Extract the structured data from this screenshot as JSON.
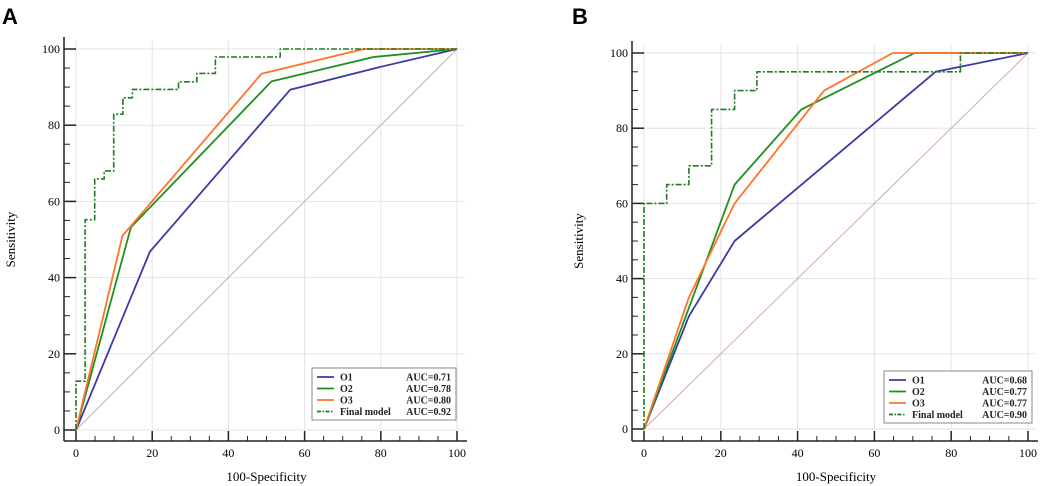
{
  "chart_data": [
    {
      "type": "line",
      "panel_label": "A",
      "xlabel": "100-Specificity",
      "ylabel": "Sensitivity",
      "xlim": [
        0,
        100
      ],
      "ylim": [
        0,
        100
      ],
      "xticks": [
        "0",
        "20",
        "40",
        "60",
        "80",
        "100"
      ],
      "yticks": [
        "0",
        "20",
        "40",
        "60",
        "80",
        "100"
      ],
      "grid": true,
      "legend_position": "bottom-right",
      "reference_line": {
        "x": [
          0,
          100
        ],
        "y": [
          0,
          100
        ],
        "color": "#d9a8a8"
      },
      "series": [
        {
          "name": "O1",
          "auc_label": "AUC=0.71",
          "color": "#3a3aa6",
          "style": "solid",
          "x": [
            0,
            19.4,
            56.2,
            79.9,
            100
          ],
          "y": [
            0,
            46.8,
            89.3,
            95.3,
            100
          ]
        },
        {
          "name": "O2",
          "auc_label": "AUC=0.78",
          "color": "#1f8f1f",
          "style": "solid",
          "x": [
            0,
            14.4,
            51.3,
            78.1,
            100
          ],
          "y": [
            0,
            53.2,
            91.5,
            97.9,
            100
          ]
        },
        {
          "name": "O3",
          "auc_label": "AUC=0.80",
          "color": "#ff7427",
          "style": "solid",
          "x": [
            0,
            12.2,
            48.7,
            75.5,
            100
          ],
          "y": [
            0,
            51,
            93.5,
            100,
            100
          ]
        },
        {
          "name": "Final model",
          "auc_label": "AUC=0.92",
          "color": "#217a21",
          "style": "dashdot",
          "x": [
            0,
            0,
            2.4,
            2.4,
            4.9,
            4.9,
            7.4,
            7.4,
            9.9,
            9.9,
            12.3,
            12.3,
            14.8,
            14.8,
            26.9,
            26.9,
            31.7,
            31.7,
            36.6,
            36.6,
            53.6,
            53.6,
            100
          ],
          "y": [
            0,
            12.8,
            12.8,
            55.2,
            55.2,
            65.9,
            65.9,
            68,
            68,
            82.9,
            82.9,
            87.2,
            87.2,
            89.4,
            89.4,
            91.4,
            91.4,
            93.6,
            93.6,
            97.9,
            97.9,
            100,
            100
          ]
        }
      ]
    },
    {
      "type": "line",
      "panel_label": "B",
      "xlabel": "100-Specificity",
      "ylabel": "Sensitivity",
      "xlim": [
        0,
        100
      ],
      "ylim": [
        0,
        100
      ],
      "xticks": [
        "0",
        "20",
        "40",
        "60",
        "80",
        "100"
      ],
      "yticks": [
        "0",
        "20",
        "40",
        "60",
        "80",
        "100"
      ],
      "grid": true,
      "legend_position": "bottom-right",
      "reference_line": {
        "x": [
          0,
          100
        ],
        "y": [
          0,
          100
        ],
        "color": "#d9a8a8"
      },
      "series": [
        {
          "name": "O1",
          "auc_label": "AUC=0.68",
          "color": "#3a3aa6",
          "style": "solid",
          "x": [
            0,
            11.7,
            23.6,
            75.9,
            100
          ],
          "y": [
            0,
            30,
            50,
            95,
            100
          ]
        },
        {
          "name": "O2",
          "auc_label": "AUC=0.77",
          "color": "#1f8f1f",
          "style": "solid",
          "x": [
            0,
            23.6,
            41,
            70.5,
            100
          ],
          "y": [
            0,
            65,
            85,
            100,
            100
          ]
        },
        {
          "name": "O3",
          "auc_label": "AUC=0.77",
          "color": "#ff7427",
          "style": "solid",
          "x": [
            0,
            11.7,
            23.6,
            46.9,
            64.8,
            100
          ],
          "y": [
            0,
            35,
            60,
            90,
            100,
            100
          ]
        },
        {
          "name": "Final model",
          "auc_label": "AUC=0.90",
          "color": "#217a21",
          "style": "dashdot",
          "x": [
            0,
            0,
            5.9,
            5.9,
            11.7,
            11.7,
            17.6,
            17.6,
            23.6,
            23.6,
            29.4,
            29.4,
            82.4,
            82.4,
            100
          ],
          "y": [
            0,
            60,
            60,
            65,
            65,
            70,
            70,
            85,
            85,
            90,
            90,
            95,
            95,
            100,
            100
          ]
        }
      ]
    }
  ]
}
